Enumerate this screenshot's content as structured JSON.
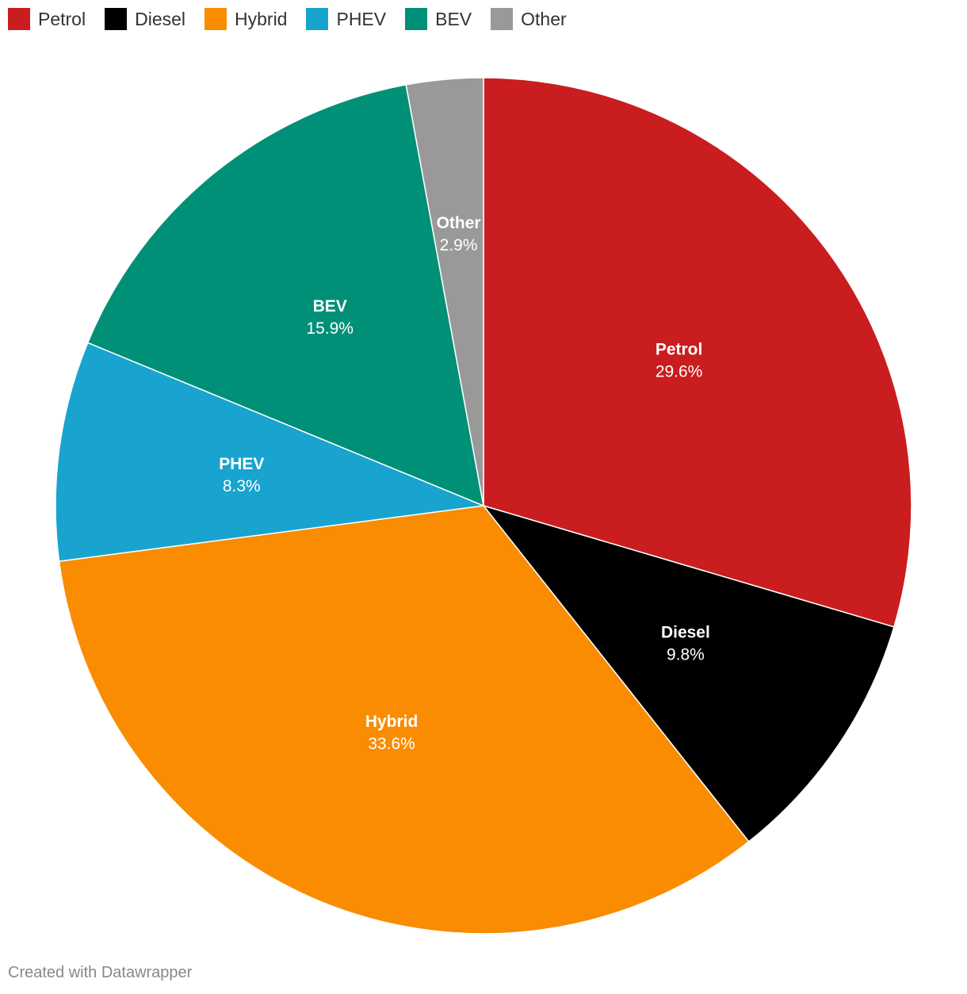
{
  "chart_data": {
    "type": "pie",
    "title": "",
    "legend_position": "top-left",
    "categories": [
      "Petrol",
      "Diesel",
      "Hybrid",
      "PHEV",
      "BEV",
      "Other"
    ],
    "values": [
      29.6,
      9.8,
      33.6,
      8.3,
      15.9,
      2.9
    ],
    "value_labels": [
      "29.6%",
      "9.8%",
      "33.6%",
      "8.3%",
      "15.9%",
      "2.9%"
    ],
    "colors": [
      "#c91d1f",
      "#000000",
      "#f98c00",
      "#19a3cf",
      "#009077",
      "#999999"
    ]
  },
  "footer": {
    "credit": "Created with Datawrapper"
  }
}
